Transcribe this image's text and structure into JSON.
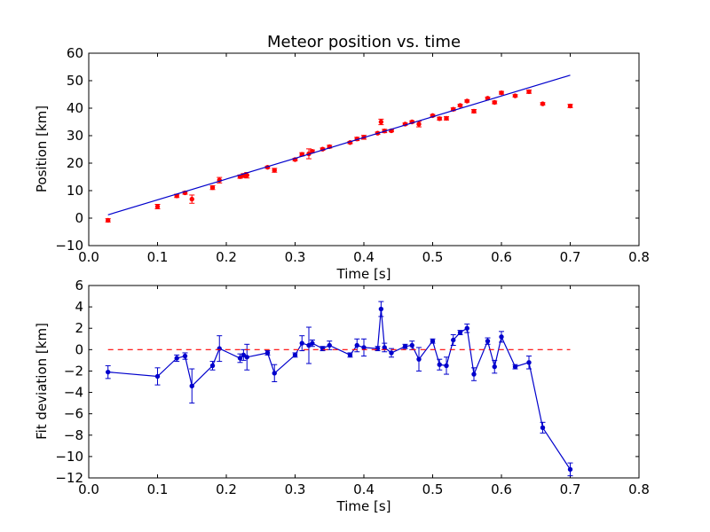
{
  "chart_data": [
    {
      "type": "scatter",
      "title": "Meteor position vs. time",
      "xlabel": "Time [s]",
      "ylabel": "Position [km]",
      "xlim": [
        0.0,
        0.8
      ],
      "ylim": [
        -10,
        60
      ],
      "xticks": [
        "0.0",
        "0.1",
        "0.2",
        "0.3",
        "0.4",
        "0.5",
        "0.6",
        "0.7",
        "0.8"
      ],
      "yticks": [
        "−10",
        "0",
        "10",
        "20",
        "30",
        "40",
        "50",
        "60"
      ],
      "grid": false,
      "series": [
        {
          "kind": "errorbar-points",
          "color": "#ff0000",
          "x": [
            0.028,
            0.1,
            0.128,
            0.14,
            0.15,
            0.18,
            0.19,
            0.22,
            0.225,
            0.23,
            0.26,
            0.27,
            0.3,
            0.31,
            0.32,
            0.325,
            0.34,
            0.35,
            0.38,
            0.39,
            0.4,
            0.42,
            0.425,
            0.43,
            0.44,
            0.46,
            0.47,
            0.48,
            0.5,
            0.51,
            0.52,
            0.53,
            0.54,
            0.55,
            0.56,
            0.58,
            0.59,
            0.6,
            0.62,
            0.64,
            0.66,
            0.7
          ],
          "y": [
            -0.8,
            4.2,
            8.1,
            9.2,
            6.9,
            11.1,
            13.8,
            15.1,
            15.5,
            15.6,
            18.5,
            17.4,
            21.3,
            23.2,
            23.4,
            24.3,
            25.1,
            26.0,
            27.5,
            28.8,
            29.4,
            30.9,
            35.0,
            31.7,
            31.8,
            34.2,
            35.0,
            34.2,
            37.3,
            36.2,
            36.3,
            39.6,
            41.0,
            42.6,
            38.9,
            43.6,
            42.1,
            45.6,
            44.5,
            46.0,
            41.6,
            40.8
          ],
          "err": [
            0.6,
            0.8,
            0.6,
            0.5,
            1.5,
            0.7,
            1.0,
            0.6,
            0.7,
            1.0,
            0.4,
            0.7,
            0.4,
            0.6,
            1.8,
            0.5,
            0.4,
            0.5,
            0.4,
            0.6,
            0.7,
            0.4,
            1.0,
            0.6,
            0.4,
            0.4,
            0.4,
            1.0,
            0.4,
            0.5,
            0.6,
            0.5,
            0.4,
            0.4,
            0.6,
            0.4,
            0.5,
            0.5,
            0.4,
            0.6,
            0.4,
            0.6
          ]
        },
        {
          "kind": "fit-line",
          "color": "#0000cc",
          "x": [
            0.028,
            0.7
          ],
          "y": [
            1.2,
            52.0
          ]
        }
      ]
    },
    {
      "type": "line",
      "xlabel": "Time [s]",
      "ylabel": "Fit deviation [km]",
      "xlim": [
        0.0,
        0.8
      ],
      "ylim": [
        -12,
        6
      ],
      "xticks": [
        "0.0",
        "0.1",
        "0.2",
        "0.3",
        "0.4",
        "0.5",
        "0.6",
        "0.7",
        "0.8"
      ],
      "yticks": [
        "−12",
        "−10",
        "−8",
        "−6",
        "−4",
        "−2",
        "0",
        "2",
        "4",
        "6"
      ],
      "grid": false,
      "series": [
        {
          "kind": "errorbar-line",
          "color": "#0000cc",
          "x": [
            0.028,
            0.1,
            0.128,
            0.14,
            0.15,
            0.18,
            0.19,
            0.22,
            0.225,
            0.23,
            0.26,
            0.27,
            0.3,
            0.31,
            0.32,
            0.325,
            0.34,
            0.35,
            0.38,
            0.39,
            0.4,
            0.42,
            0.425,
            0.43,
            0.44,
            0.46,
            0.47,
            0.48,
            0.5,
            0.51,
            0.52,
            0.53,
            0.54,
            0.55,
            0.56,
            0.58,
            0.59,
            0.6,
            0.62,
            0.64,
            0.66,
            0.7
          ],
          "y": [
            -2.1,
            -2.5,
            -0.8,
            -0.6,
            -3.4,
            -1.5,
            0.1,
            -0.8,
            -0.5,
            -0.7,
            -0.3,
            -2.2,
            -0.5,
            0.6,
            0.4,
            0.6,
            0.1,
            0.4,
            -0.5,
            0.4,
            0.2,
            0.1,
            3.8,
            0.2,
            -0.3,
            0.3,
            0.4,
            -0.9,
            0.8,
            -1.4,
            -1.5,
            0.9,
            1.6,
            2.0,
            -2.3,
            0.8,
            -1.6,
            1.2,
            -1.6,
            -1.2,
            -7.3,
            -11.2
          ],
          "err": [
            0.6,
            0.8,
            0.3,
            0.3,
            1.6,
            0.4,
            1.2,
            0.4,
            0.5,
            1.2,
            0.2,
            0.8,
            0.2,
            0.7,
            1.7,
            0.3,
            0.2,
            0.4,
            0.2,
            0.6,
            0.8,
            0.2,
            0.7,
            0.4,
            0.4,
            0.2,
            0.4,
            1.1,
            0.2,
            0.5,
            0.8,
            0.5,
            0.2,
            0.4,
            0.6,
            0.3,
            0.6,
            0.5,
            0.2,
            0.6,
            0.5,
            0.6
          ]
        },
        {
          "kind": "reference-line",
          "style": "dashed",
          "color": "#ff0000",
          "x": [
            0.028,
            0.7
          ],
          "y": [
            0,
            0
          ]
        }
      ]
    }
  ]
}
